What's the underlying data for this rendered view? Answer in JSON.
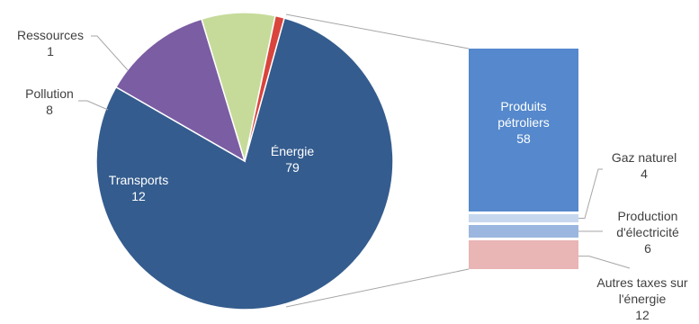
{
  "chart_data": {
    "type": "pie",
    "title": "",
    "colors": {
      "energie": "#345C8E",
      "transports": "#7B5DA3",
      "pollution": "#C6DB9A",
      "ressources": "#D9443C",
      "produits_petroliers": "#5588CC",
      "gaz_naturel": "#C7D8EE",
      "production_electricite": "#9BB7DF",
      "autres_taxes": "#E9B5B5",
      "connector": "#A6A6A6"
    },
    "pie": {
      "slices": [
        {
          "key": "energie",
          "label": "Énergie",
          "value": "79"
        },
        {
          "key": "transports",
          "label": "Transports",
          "value": "12"
        },
        {
          "key": "pollution",
          "label": "Pollution",
          "value": "8"
        },
        {
          "key": "ressources",
          "label": "Ressources",
          "value": "1"
        }
      ]
    },
    "breakdown": {
      "of": "Énergie",
      "segments": [
        {
          "key": "produits_petroliers",
          "label_lines": [
            "Produits",
            "pétroliers"
          ],
          "value": "58"
        },
        {
          "key": "gaz_naturel",
          "label_lines": [
            "Gaz naturel"
          ],
          "value": "4"
        },
        {
          "key": "production_electricite",
          "label_lines": [
            "Production",
            "d'électricité"
          ],
          "value": "6"
        },
        {
          "key": "autres_taxes",
          "label_lines": [
            "Autres taxes sur",
            "l'énergie"
          ],
          "value": "12"
        }
      ]
    }
  }
}
